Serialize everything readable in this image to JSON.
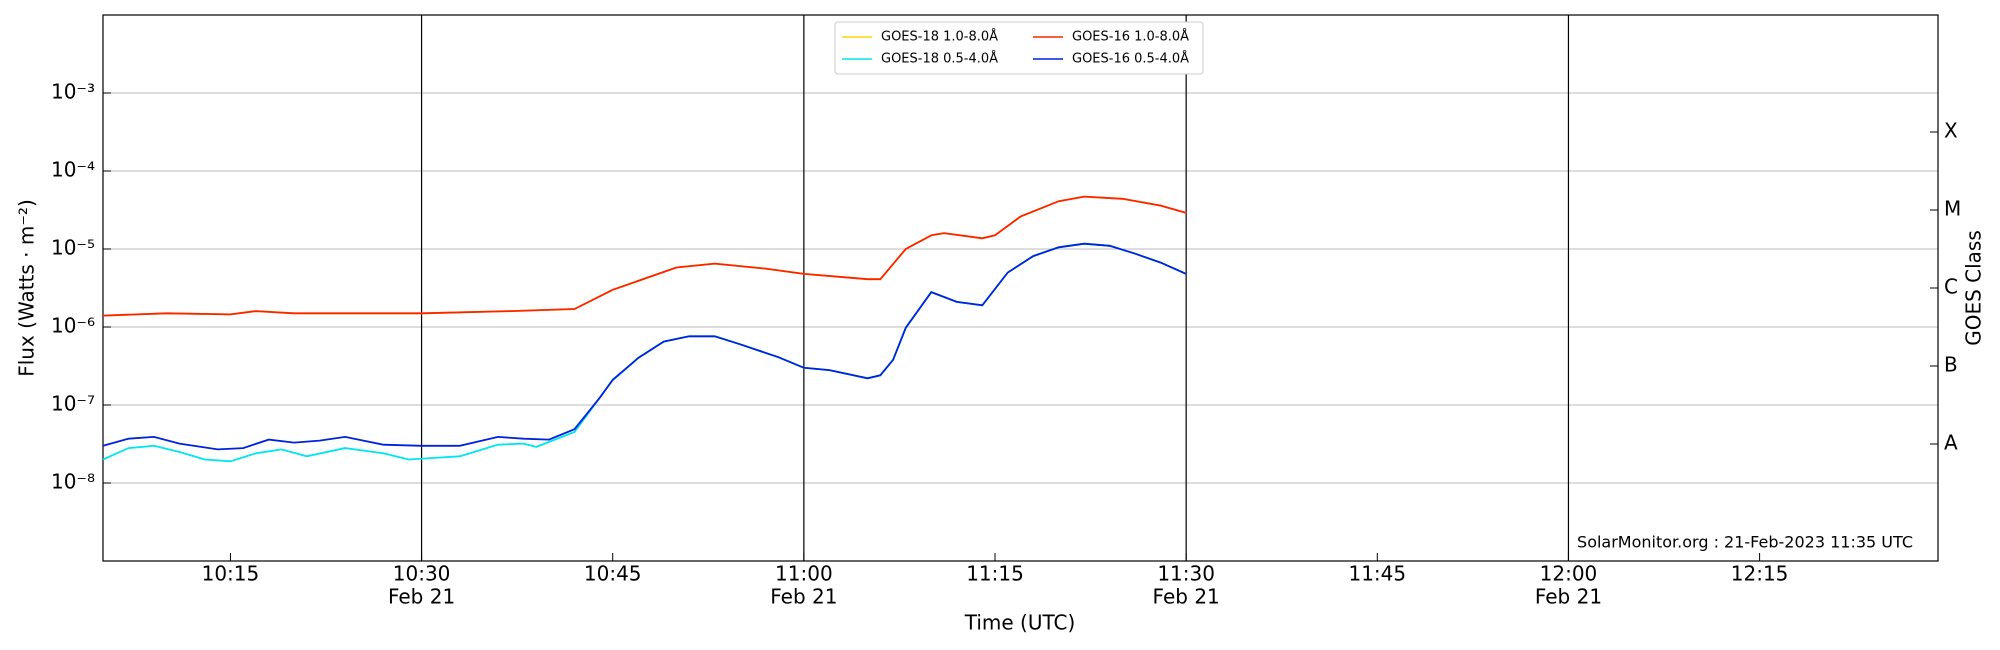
{
  "chart_data": {
    "type": "line",
    "ylabel": "Flux (Watts · m⁻²)",
    "xlabel": "Time (UTC)",
    "y2label": "GOES Class",
    "annotation": "SolarMonitor.org : 21-Feb-2023 11:35 UTC",
    "log_y": true,
    "grid": true,
    "ylim": [
      1e-09,
      0.01
    ],
    "yticks": [
      {
        "value": 1e-08,
        "label": "10⁻⁸"
      },
      {
        "value": 1e-07,
        "label": "10⁻⁷"
      },
      {
        "value": 1e-06,
        "label": "10⁻⁶"
      },
      {
        "value": 1e-05,
        "label": "10⁻⁵"
      },
      {
        "value": 0.0001,
        "label": "10⁻⁴"
      },
      {
        "value": 0.001,
        "label": "10⁻³"
      }
    ],
    "y2lim": [
      1e-09,
      0.01
    ],
    "y2ticks": [
      {
        "value": 3.162e-08,
        "label": "A"
      },
      {
        "value": 3.162e-07,
        "label": "B"
      },
      {
        "value": 3.162e-06,
        "label": "C"
      },
      {
        "value": 3.162e-05,
        "label": "M"
      },
      {
        "value": 0.0003162,
        "label": "X"
      }
    ],
    "xlim": [
      "10:05",
      "12:29"
    ],
    "xticks": [
      "10:15",
      "10:30",
      "10:45",
      "11:00",
      "11:15",
      "11:30",
      "11:45",
      "12:00",
      "12:15"
    ],
    "xtick_dates": [
      null,
      "Feb 21",
      null,
      "Feb 21",
      null,
      "Feb 21",
      null,
      "Feb 21",
      null
    ],
    "vlines": [
      "10:30",
      "11:00",
      "11:30",
      "12:00"
    ],
    "series": [
      {
        "name": "GOES-18 1.0-8.0Å",
        "color": "#ffd700",
        "x": [
          "10:05",
          "10:10",
          "10:15",
          "10:17",
          "10:20",
          "10:30",
          "10:37",
          "10:42",
          "10:45",
          "10:50",
          "10:53",
          "10:57",
          "11:00",
          "11:05",
          "11:06",
          "11:08",
          "11:10",
          "11:11",
          "11:14",
          "11:15",
          "11:17",
          "11:20",
          "11:22",
          "11:25",
          "11:28",
          "11:30"
        ],
        "values": [
          1.4e-06,
          1.5e-06,
          1.45e-06,
          1.6e-06,
          1.5e-06,
          1.5e-06,
          1.6e-06,
          1.7e-06,
          3e-06,
          5.8e-06,
          6.5e-06,
          5.6e-06,
          4.8e-06,
          4.1e-06,
          4.1e-06,
          1e-05,
          1.5e-05,
          1.6e-05,
          1.37e-05,
          1.5e-05,
          2.6e-05,
          4.1e-05,
          4.7e-05,
          4.4e-05,
          3.6e-05,
          2.9e-05
        ]
      },
      {
        "name": "GOES-18 0.5-4.0Å",
        "color": "#00e5ee",
        "x": [
          "10:05",
          "10:07",
          "10:09",
          "10:11",
          "10:13",
          "10:15",
          "10:17",
          "10:19",
          "10:21",
          "10:24",
          "10:27",
          "10:29",
          "10:31",
          "10:33",
          "10:36",
          "10:38",
          "10:39",
          "10:42",
          "10:44",
          "10:45",
          "10:47",
          "10:49",
          "10:51",
          "10:53",
          "10:55",
          "10:58",
          "11:00",
          "11:02",
          "11:05",
          "11:06",
          "11:07",
          "11:08",
          "11:10",
          "11:12",
          "11:14",
          "11:16",
          "11:18",
          "11:20",
          "11:22",
          "11:24",
          "11:26",
          "11:28",
          "11:30"
        ],
        "values": [
          2e-08,
          2.8e-08,
          3e-08,
          2.5e-08,
          2e-08,
          1.9e-08,
          2.4e-08,
          2.7e-08,
          2.2e-08,
          2.8e-08,
          2.4e-08,
          2e-08,
          2.1e-08,
          2.2e-08,
          3.1e-08,
          3.2e-08,
          2.9e-08,
          4.5e-08,
          1.25e-07,
          2.1e-07,
          4e-07,
          6.5e-07,
          7.6e-07,
          7.6e-07,
          6e-07,
          4.1e-07,
          3e-07,
          2.8e-07,
          2.2e-07,
          2.4e-07,
          3.8e-07,
          9.8e-07,
          2.8e-06,
          2.1e-06,
          1.9e-06,
          5e-06,
          8.1e-06,
          1.05e-05,
          1.17e-05,
          1.1e-05,
          8.7e-06,
          6.7e-06,
          4.8e-06
        ]
      },
      {
        "name": "GOES-16 1.0-8.0Å",
        "color": "#ff2200",
        "x": [
          "10:05",
          "10:10",
          "10:15",
          "10:17",
          "10:20",
          "10:30",
          "10:37",
          "10:42",
          "10:45",
          "10:50",
          "10:53",
          "10:57",
          "11:00",
          "11:05",
          "11:06",
          "11:08",
          "11:10",
          "11:11",
          "11:14",
          "11:15",
          "11:17",
          "11:20",
          "11:22",
          "11:25",
          "11:28",
          "11:30"
        ],
        "values": [
          1.4e-06,
          1.5e-06,
          1.45e-06,
          1.6e-06,
          1.5e-06,
          1.5e-06,
          1.6e-06,
          1.7e-06,
          3e-06,
          5.8e-06,
          6.5e-06,
          5.6e-06,
          4.8e-06,
          4.1e-06,
          4.1e-06,
          1e-05,
          1.5e-05,
          1.6e-05,
          1.37e-05,
          1.5e-05,
          2.6e-05,
          4.1e-05,
          4.7e-05,
          4.4e-05,
          3.6e-05,
          2.9e-05
        ]
      },
      {
        "name": "GOES-16 0.5-4.0Å",
        "color": "#0022dd",
        "x": [
          "10:05",
          "10:07",
          "10:09",
          "10:11",
          "10:14",
          "10:16",
          "10:18",
          "10:20",
          "10:22",
          "10:24",
          "10:27",
          "10:30",
          "10:33",
          "10:36",
          "10:38",
          "10:40",
          "10:42",
          "10:44",
          "10:45",
          "10:47",
          "10:49",
          "10:51",
          "10:53",
          "10:55",
          "10:58",
          "11:00",
          "11:02",
          "11:05",
          "11:06",
          "11:07",
          "11:08",
          "11:10",
          "11:12",
          "11:14",
          "11:16",
          "11:18",
          "11:20",
          "11:22",
          "11:24",
          "11:26",
          "11:28",
          "11:30"
        ],
        "values": [
          3e-08,
          3.7e-08,
          3.9e-08,
          3.2e-08,
          2.7e-08,
          2.8e-08,
          3.6e-08,
          3.3e-08,
          3.5e-08,
          3.9e-08,
          3.1e-08,
          3e-08,
          3e-08,
          3.9e-08,
          3.7e-08,
          3.6e-08,
          4.9e-08,
          1.25e-07,
          2.1e-07,
          4e-07,
          6.5e-07,
          7.6e-07,
          7.6e-07,
          6e-07,
          4.1e-07,
          3e-07,
          2.8e-07,
          2.2e-07,
          2.4e-07,
          3.8e-07,
          9.8e-07,
          2.8e-06,
          2.1e-06,
          1.9e-06,
          5e-06,
          8.1e-06,
          1.05e-05,
          1.17e-05,
          1.1e-05,
          8.7e-06,
          6.7e-06,
          4.8e-06
        ]
      }
    ]
  }
}
